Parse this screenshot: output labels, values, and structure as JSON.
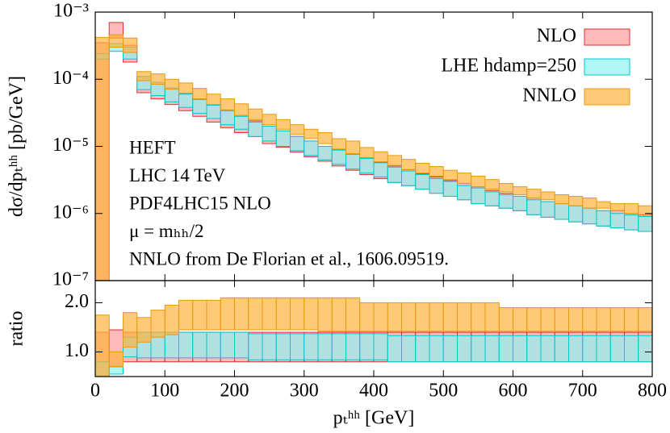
{
  "chart_data": [
    {
      "type": "band",
      "ylabel": "dσ/dpₜʰʰ [pb/GeV]",
      "ylog": true,
      "ylim": [
        1e-07,
        0.001
      ],
      "yticks": [
        {
          "value": 1e-07,
          "label": "10⁻⁷"
        },
        {
          "value": 1e-06,
          "label": "10⁻⁶"
        },
        {
          "value": 1e-05,
          "label": "10⁻⁵"
        },
        {
          "value": 0.0001,
          "label": "10⁻⁴"
        },
        {
          "value": 0.001,
          "label": "10⁻³"
        }
      ],
      "legend": "upper right",
      "annotations": [
        "HEFT",
        "LHC 14 TeV",
        "PDF4LHC15 NLO",
        "μ = mₕₕ/2",
        "NNLO from De Florian et al., 1606.09519."
      ],
      "bins": [
        0,
        20,
        40,
        60,
        80,
        100,
        120,
        140,
        160,
        180,
        200,
        220,
        240,
        260,
        280,
        300,
        320,
        340,
        360,
        380,
        400,
        420,
        440,
        460,
        480,
        500,
        520,
        540,
        560,
        580,
        600,
        620,
        640,
        660,
        680,
        700,
        720,
        740,
        760,
        780,
        800
      ],
      "series": [
        {
          "name": "NLO",
          "color": "#ff9c9c",
          "edge": "#e0303a",
          "low": [
            8e-08,
            0.00041,
            0.00018,
            6.3e-05,
            5.1e-05,
            4.2e-05,
            3.4e-05,
            2.8e-05,
            2.3e-05,
            1.9e-05,
            1.6e-05,
            1.4e-05,
            1.1e-05,
            9.7e-06,
            8.2e-06,
            7e-06,
            6e-06,
            5.1e-06,
            4.4e-06,
            3.8e-06,
            3.3e-06,
            2.9e-06,
            2.6e-06,
            2.3e-06,
            2e-06,
            1.8e-06,
            1.6e-06,
            1.4e-06,
            1.3e-06,
            1.2e-06,
            1.1e-06,
            9.6e-07,
            8.8e-07,
            8.2e-07,
            7.5e-07,
            7e-07,
            6.5e-07,
            6.1e-07,
            5.7e-07,
            5.4e-07
          ],
          "high": [
            0.00035,
            0.0007,
            0.00032,
            0.00011,
            9e-05,
            7.4e-05,
            6e-05,
            5e-05,
            4.1e-05,
            3.4e-05,
            2.8e-05,
            2.4e-05,
            2e-05,
            1.7e-05,
            1.4e-05,
            1.2e-05,
            1e-05,
            9e-06,
            7.7e-06,
            6.7e-06,
            5.8e-06,
            5.1e-06,
            4.5e-06,
            3.9e-06,
            3.5e-06,
            3.1e-06,
            2.8e-06,
            2.5e-06,
            2.2e-06,
            2e-06,
            1.8e-06,
            1.7e-06,
            1.5e-06,
            1.4e-06,
            1.3e-06,
            1.2e-06,
            1.1e-06,
            1.1e-06,
            1e-06,
            9.5e-07
          ]
        },
        {
          "name": "LHE hdamp=250",
          "color": "#8ff2f2",
          "edge": "#00c8d0",
          "low": [
            0.0002,
            0.00026,
            0.0002,
            7e-05,
            5.7e-05,
            4.6e-05,
            3.8e-05,
            3.1e-05,
            2.6e-05,
            2.1e-05,
            1.8e-05,
            1.4e-05,
            1.2e-05,
            1e-05,
            8.6e-06,
            7.3e-06,
            6.3e-06,
            5.4e-06,
            4.6e-06,
            4e-06,
            3.5e-06,
            2.9e-06,
            2.6e-06,
            2.3e-06,
            2e-06,
            1.8e-06,
            1.6e-06,
            1.4e-06,
            1.3e-06,
            1.2e-06,
            1.1e-06,
            9.6e-07,
            8.8e-07,
            8.2e-07,
            7.5e-07,
            7e-07,
            6.5e-07,
            6.1e-07,
            5.7e-07,
            5.4e-07
          ],
          "high": [
            0.00024,
            0.00034,
            0.0003,
            0.00011,
            9e-05,
            7.4e-05,
            6e-05,
            5e-05,
            4.1e-05,
            3.4e-05,
            2.8e-05,
            2.3e-05,
            2e-05,
            1.7e-05,
            1.4e-05,
            1.2e-05,
            1e-05,
            8.8e-06,
            7.6e-06,
            6.6e-06,
            5.7e-06,
            4.9e-06,
            4.3e-06,
            3.8e-06,
            3.3e-06,
            3e-06,
            2.6e-06,
            2.4e-06,
            2.1e-06,
            1.9e-06,
            1.8e-06,
            1.6e-06,
            1.5e-06,
            1.4e-06,
            1.3e-06,
            1.2e-06,
            1.1e-06,
            1e-06,
            9.5e-07,
            9e-07
          ]
        },
        {
          "name": "NNLO",
          "color": "#ffb23a",
          "edge": "#e89a10",
          "low": [
            8e-08,
            0.0003,
            0.00025,
            9.5e-05,
            8.4e-05,
            7.1e-05,
            6.2e-05,
            5.1e-05,
            4.2e-05,
            3.5e-05,
            2.9e-05,
            2.5e-05,
            2.1e-05,
            1.8e-05,
            1.5e-05,
            1.3e-05,
            1.1e-05,
            9.1e-06,
            7.8e-06,
            6.8e-06,
            5.9e-06,
            5.2e-06,
            4.5e-06,
            4e-06,
            3.6e-06,
            3.2e-06,
            2.8e-06,
            2.5e-06,
            2.3e-06,
            2.1e-06,
            1.9e-06,
            1.7e-06,
            1.6e-06,
            1.4e-06,
            1.3e-06,
            1.2e-06,
            1.2e-06,
            1.1e-06,
            1e-06,
            9.6e-07
          ],
          "high": [
            0.00042,
            0.00046,
            0.00041,
            0.00013,
            0.00012,
            0.0001,
            8.8e-05,
            7.3e-05,
            6e-05,
            5.1e-05,
            4.3e-05,
            3.6e-05,
            3e-05,
            2.5e-05,
            2.1e-05,
            1.8e-05,
            1.6e-05,
            1.3e-05,
            1.2e-05,
            9.6e-06,
            8.3e-06,
            7.3e-06,
            6.4e-06,
            5.6e-06,
            5e-06,
            4.4e-06,
            4e-06,
            3.6e-06,
            3.2e-06,
            2.8e-06,
            2.5e-06,
            2.3e-06,
            2.1e-06,
            1.9e-06,
            1.8e-06,
            1.7e-06,
            1.5e-06,
            1.4e-06,
            1.4e-06,
            1.3e-06
          ]
        }
      ]
    },
    {
      "type": "band",
      "ylabel": "ratio",
      "xlabel": "pₜʰʰ [GeV]",
      "xlim": [
        0,
        800
      ],
      "xticks": [
        0,
        100,
        200,
        300,
        400,
        500,
        600,
        700,
        800
      ],
      "ylim": [
        0.5,
        2.45
      ],
      "yticks": [
        {
          "value": 1,
          "label": "1.0"
        },
        {
          "value": 2,
          "label": "2.0"
        }
      ],
      "bins": [
        0,
        20,
        40,
        60,
        80,
        100,
        120,
        140,
        160,
        180,
        200,
        220,
        240,
        260,
        280,
        300,
        320,
        340,
        360,
        380,
        400,
        420,
        440,
        460,
        480,
        500,
        520,
        540,
        560,
        580,
        600,
        620,
        640,
        660,
        680,
        700,
        720,
        740,
        760,
        780,
        800
      ],
      "series": [
        {
          "color": "#ff9c9c",
          "edge": "#e0303a",
          "low": [
            0.45,
            0.7,
            0.8,
            0.8,
            0.8,
            0.8,
            0.8,
            0.8,
            0.8,
            0.8,
            0.8,
            0.8,
            0.8,
            0.8,
            0.8,
            0.8,
            0.8,
            0.8,
            0.8,
            0.8,
            0.8,
            0.8,
            0.8,
            0.8,
            0.8,
            0.8,
            0.8,
            0.8,
            0.8,
            0.8,
            0.8,
            0.8,
            0.8,
            0.8,
            0.8,
            0.8,
            0.8,
            0.8,
            0.8,
            0.8
          ],
          "high": [
            1.4,
            1.45,
            1.4,
            1.4,
            1.4,
            1.4,
            1.4,
            1.4,
            1.4,
            1.4,
            1.4,
            1.4,
            1.4,
            1.4,
            1.4,
            1.4,
            1.4,
            1.4,
            1.4,
            1.4,
            1.4,
            1.4,
            1.4,
            1.4,
            1.4,
            1.4,
            1.4,
            1.4,
            1.4,
            1.4,
            1.4,
            1.4,
            1.4,
            1.4,
            1.4,
            1.4,
            1.4,
            1.4,
            1.4,
            1.4
          ]
        },
        {
          "color": "#8ff2f2",
          "edge": "#00c8d0",
          "low": [
            0.45,
            0.55,
            0.9,
            0.88,
            0.88,
            0.88,
            0.88,
            0.88,
            0.88,
            0.88,
            0.88,
            0.84,
            0.84,
            0.84,
            0.84,
            0.84,
            0.84,
            0.84,
            0.84,
            0.84,
            0.84,
            0.8,
            0.8,
            0.8,
            0.8,
            0.8,
            0.8,
            0.8,
            0.8,
            0.8,
            0.8,
            0.8,
            0.8,
            0.8,
            0.8,
            0.8,
            0.8,
            0.8,
            0.8,
            0.8
          ],
          "high": [
            0.8,
            0.7,
            1.3,
            1.4,
            1.4,
            1.4,
            1.4,
            1.4,
            1.4,
            1.4,
            1.4,
            1.37,
            1.37,
            1.37,
            1.37,
            1.37,
            1.37,
            1.37,
            1.37,
            1.37,
            1.37,
            1.33,
            1.33,
            1.33,
            1.33,
            1.33,
            1.33,
            1.33,
            1.33,
            1.33,
            1.33,
            1.33,
            1.33,
            1.33,
            1.33,
            1.33,
            1.33,
            1.33,
            1.33,
            1.33
          ]
        },
        {
          "color": "#ffb23a",
          "edge": "#e89a10",
          "low": [
            0.45,
            0.7,
            1.1,
            1.2,
            1.3,
            1.35,
            1.45,
            1.45,
            1.45,
            1.45,
            1.45,
            1.45,
            1.45,
            1.45,
            1.45,
            1.45,
            1.42,
            1.42,
            1.42,
            1.42,
            1.42,
            1.42,
            1.42,
            1.42,
            1.42,
            1.42,
            1.42,
            1.42,
            1.42,
            1.42,
            1.42,
            1.42,
            1.42,
            1.42,
            1.42,
            1.42,
            1.42,
            1.42,
            1.42,
            1.42
          ],
          "high": [
            1.75,
            1.0,
            1.8,
            1.7,
            1.85,
            1.95,
            2.05,
            2.05,
            2.05,
            2.1,
            2.1,
            2.1,
            2.1,
            2.1,
            2.1,
            2.1,
            2.1,
            2.1,
            2.1,
            2.0,
            2.0,
            2.0,
            2.0,
            2.0,
            2.0,
            2.0,
            2.0,
            2.0,
            2.0,
            1.9,
            1.9,
            1.9,
            1.9,
            1.9,
            1.9,
            1.9,
            1.9,
            1.9,
            1.9,
            1.9
          ]
        }
      ]
    }
  ]
}
